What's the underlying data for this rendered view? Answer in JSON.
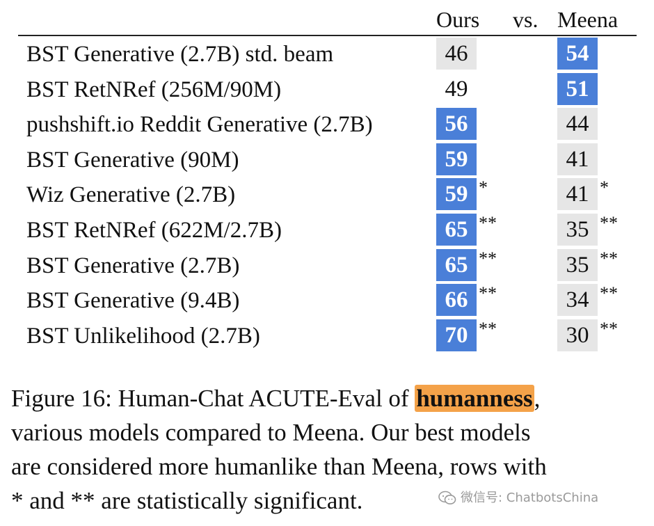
{
  "header": {
    "ours": "Ours",
    "vs": "vs.",
    "meena": "Meena"
  },
  "rows": [
    {
      "model": "BST Generative (2.7B) std. beam",
      "ours": "46",
      "meena": "54",
      "ours_sig": "",
      "meena_sig": "",
      "ours_style": "gray",
      "meena_style": "blue"
    },
    {
      "model": "BST RetNRef (256M/90M)",
      "ours": "49",
      "meena": "51",
      "ours_sig": "",
      "meena_sig": "",
      "ours_style": "white",
      "meena_style": "blue"
    },
    {
      "model": "pushshift.io Reddit Generative (2.7B)",
      "ours": "56",
      "meena": "44",
      "ours_sig": "",
      "meena_sig": "",
      "ours_style": "blue",
      "meena_style": "gray"
    },
    {
      "model": "BST Generative (90M)",
      "ours": "59",
      "meena": "41",
      "ours_sig": "",
      "meena_sig": "",
      "ours_style": "blue",
      "meena_style": "gray"
    },
    {
      "model": "Wiz Generative (2.7B)",
      "ours": "59",
      "meena": "41",
      "ours_sig": "*",
      "meena_sig": "*",
      "ours_style": "blue",
      "meena_style": "gray"
    },
    {
      "model": "BST RetNRef (622M/2.7B)",
      "ours": "65",
      "meena": "35",
      "ours_sig": "**",
      "meena_sig": "**",
      "ours_style": "blue",
      "meena_style": "gray"
    },
    {
      "model": "BST Generative (2.7B)",
      "ours": "65",
      "meena": "35",
      "ours_sig": "**",
      "meena_sig": "**",
      "ours_style": "blue",
      "meena_style": "gray"
    },
    {
      "model": "BST Generative (9.4B)",
      "ours": "66",
      "meena": "34",
      "ours_sig": "**",
      "meena_sig": "**",
      "ours_style": "blue",
      "meena_style": "gray"
    },
    {
      "model": "BST Unlikelihood (2.7B)",
      "ours": "70",
      "meena": "30",
      "ours_sig": "**",
      "meena_sig": "**",
      "ours_style": "blue",
      "meena_style": "gray"
    }
  ],
  "caption": {
    "line1_pre": "Figure 16: Human-Chat ACUTE-Eval of ",
    "line1_highlight": "humanness",
    "line1_post": ",",
    "line2": "various models compared to Meena.  Our best models",
    "line3": "are considered more humanlike than Meena, rows with",
    "line4": "* and ** are statistically significant."
  },
  "watermark": {
    "text": "微信号: ChatbotsChina",
    "icon": "wechat-icon"
  },
  "colors": {
    "blue_cell": "#4a7fd8",
    "gray_cell": "#e6e6e6",
    "highlight": "#f4a249"
  }
}
